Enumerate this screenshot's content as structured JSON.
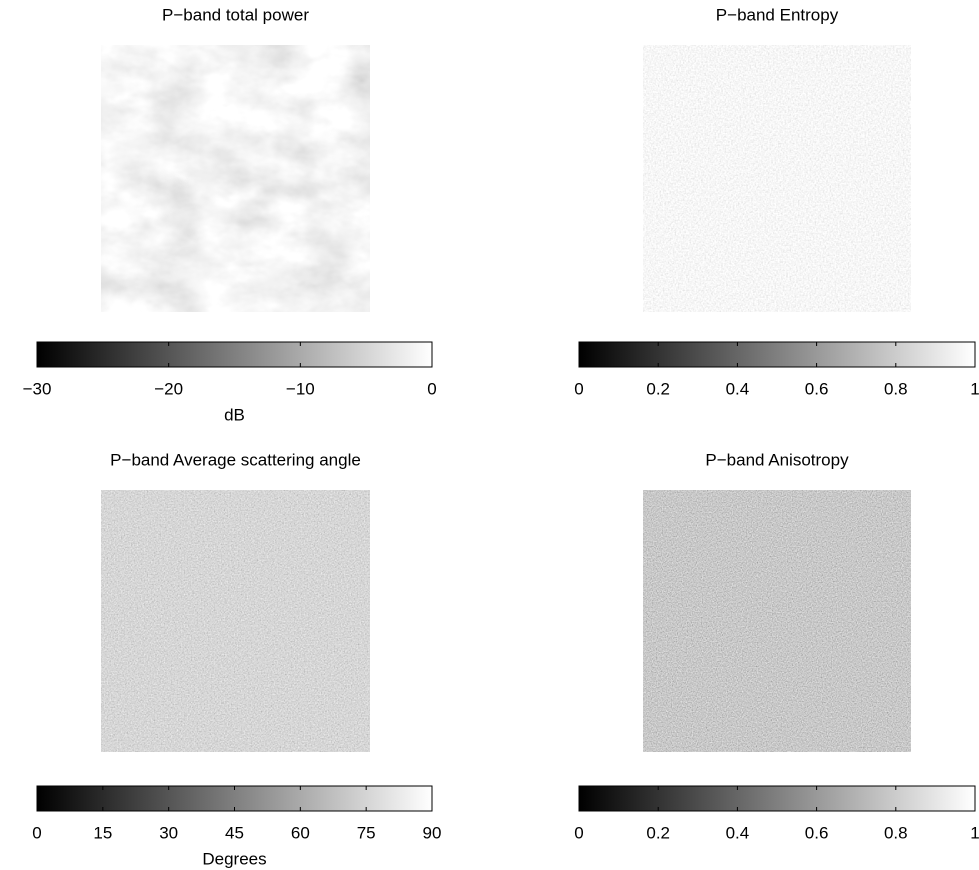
{
  "chart_data": [
    {
      "type": "image",
      "title": "P−band total power",
      "colorbar": {
        "clim": [
          -30,
          0
        ],
        "ticks": [
          {
            "value": -30,
            "label": "−30"
          },
          {
            "value": -20,
            "label": "−20"
          },
          {
            "value": -10,
            "label": "−10"
          },
          0
        ],
        "label": "dB"
      }
    },
    {
      "type": "image",
      "title": "P−band Entropy",
      "colorbar": {
        "clim": [
          0,
          1
        ],
        "ticks": [
          0,
          0.2,
          0.4,
          0.6,
          0.8,
          1
        ]
      }
    },
    {
      "type": "image",
      "title": "P−band Average scattering angle",
      "colorbar": {
        "clim": [
          0,
          90
        ],
        "ticks": [
          0,
          15,
          30,
          45,
          60,
          75,
          90
        ],
        "label": "Degrees"
      }
    },
    {
      "type": "image",
      "title": "P−band Anisotropy",
      "colorbar": {
        "clim": [
          0,
          1
        ],
        "ticks": [
          0,
          0.2,
          0.4,
          0.6,
          0.8,
          1
        ]
      }
    }
  ]
}
